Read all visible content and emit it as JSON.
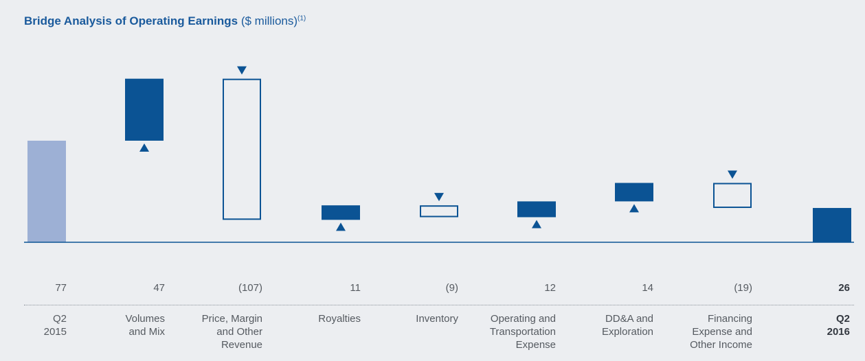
{
  "title": {
    "main": "Bridge Analysis of Operating Earnings",
    "unit": "($ millions)",
    "note": "(1)"
  },
  "colors": {
    "background": "#eceef1",
    "start_bar": "#9db0d5",
    "solid_bar": "#0b5394",
    "outline_bar": "#0b5394",
    "baseline": "#0b5394",
    "arrow": "#0b5394"
  },
  "chart_data": {
    "type": "bar",
    "subtype": "waterfall",
    "title": "Bridge Analysis of Operating Earnings ($ millions)(1)",
    "xlabel": "",
    "ylabel": "",
    "grid": false,
    "legend": "none",
    "categories": [
      "Q2\n2015",
      "Volumes\nand Mix",
      "Price, Margin\nand Other\nRevenue",
      "Royalties",
      "Inventory",
      "Operating and\nTransportation\nExpense",
      "DD&A and\nExploration",
      "Financing\nExpense and\nOther Income",
      "Q2\n2016"
    ],
    "values": [
      77,
      47,
      -107,
      11,
      -9,
      12,
      14,
      -19,
      26
    ],
    "value_labels": [
      "77",
      "47",
      "(107)",
      "11",
      "(9)",
      "12",
      "14",
      "(19)",
      "26"
    ],
    "kinds": [
      "total",
      "increase",
      "decrease",
      "increase",
      "decrease",
      "increase",
      "increase",
      "decrease",
      "total"
    ],
    "bold": [
      false,
      false,
      false,
      false,
      false,
      false,
      false,
      false,
      true
    ]
  }
}
